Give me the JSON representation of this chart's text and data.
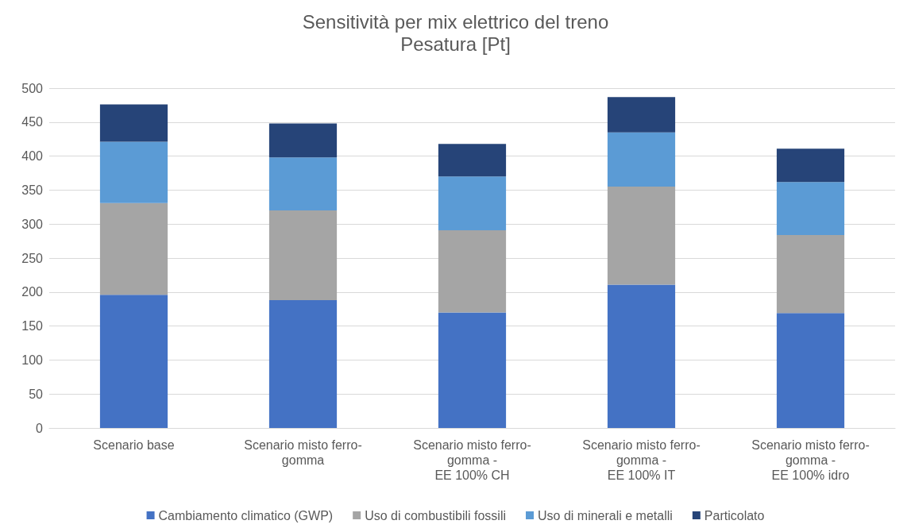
{
  "chart_data": {
    "type": "bar",
    "title": "Sensitività per mix elettrico del treno",
    "subtitle": "Pesatura [Pt]",
    "categories": [
      "Scenario base",
      "Scenario misto ferro-\ngomma",
      "Scenario misto ferro-\ngomma -\nEE 100% CH",
      "Scenario misto ferro-\ngomma -\nEE 100% IT",
      "Scenario misto ferro-\ngomma -\nEE 100% idro"
    ],
    "series": [
      {
        "name": "Cambiamento climatico (GWP)",
        "color": "#4472c4",
        "values": [
          196,
          188,
          170,
          211,
          169
        ]
      },
      {
        "name": "Uso di combustibili fossili",
        "color": "#a5a5a5",
        "values": [
          135,
          132,
          121,
          144,
          115
        ]
      },
      {
        "name": "Uso di minerali e metalli",
        "color": "#5b9bd5",
        "values": [
          90,
          78,
          79,
          80,
          78
        ]
      },
      {
        "name": "Particolato",
        "color": "#264478",
        "values": [
          55,
          50,
          48,
          52,
          49
        ]
      }
    ],
    "stacked": true,
    "ylim": [
      0,
      500
    ],
    "yticks": [
      0,
      50,
      100,
      150,
      200,
      250,
      300,
      350,
      400,
      450,
      500
    ],
    "grid": "y",
    "legend": "bottom"
  }
}
